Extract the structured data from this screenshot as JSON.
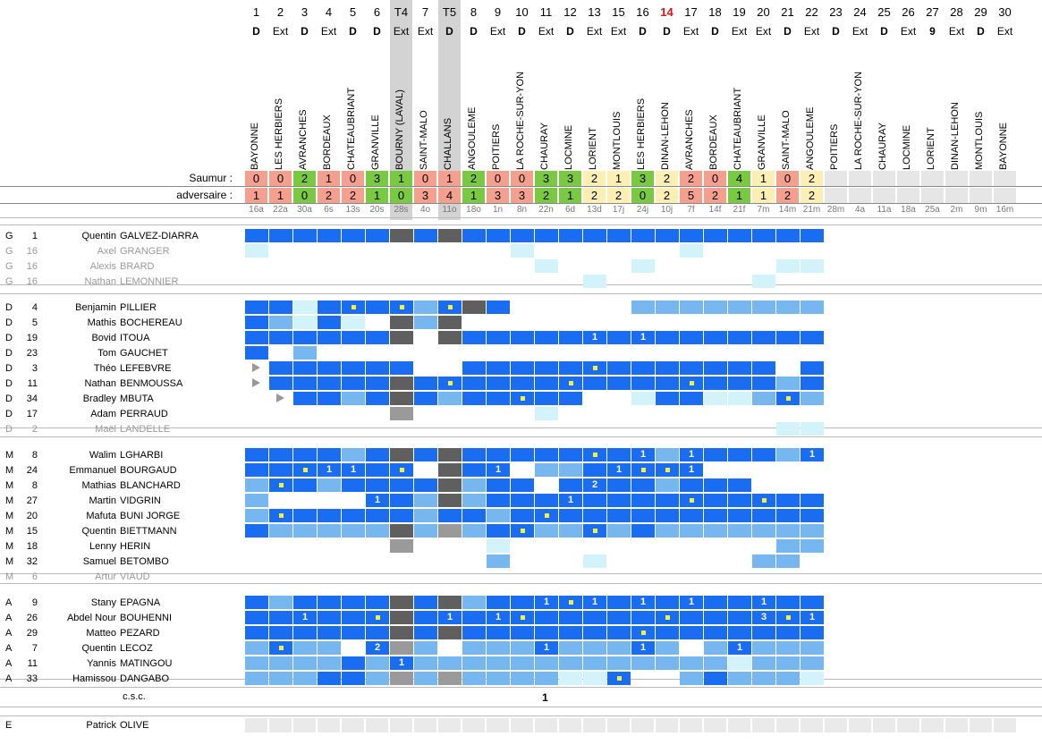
{
  "rounds": [
    "1",
    "2",
    "3",
    "4",
    "5",
    "6",
    "T4",
    "7",
    "T5",
    "8",
    "9",
    "10",
    "11",
    "12",
    "13",
    "15",
    "16",
    "14",
    "17",
    "18",
    "19",
    "20",
    "21",
    "22",
    "23",
    "24",
    "25",
    "26",
    "27",
    "28",
    "29",
    "30"
  ],
  "venues": [
    "D",
    "Ext",
    "D",
    "Ext",
    "D",
    "D",
    "Ext",
    "Ext",
    "D",
    "D",
    "Ext",
    "D",
    "Ext",
    "D",
    "Ext",
    "Ext",
    "D",
    "D",
    "Ext",
    "D",
    "Ext",
    "Ext",
    "D",
    "Ext",
    "D",
    "Ext",
    "D",
    "Ext",
    "9",
    "Ext",
    "D",
    "Ext"
  ],
  "opponents": [
    "BAYONNE",
    "LES HERBIERS",
    "AVRANCHES",
    "BORDEAUX",
    "CHATEAUBRIANT",
    "GRANVILLE",
    "BOURNY (LAVAL)",
    "SAINT-MALO",
    "CHALLANS",
    "ANGOULEME",
    "POITIERS",
    "LA ROCHE-SUR-YON",
    "CHAURAY",
    "LOCMINE",
    "LORIENT",
    "MONTLOUIS",
    "LES HERBIERS",
    "DINAN-LEHON",
    "AVRANCHES",
    "BORDEAUX",
    "CHATEAUBRIANT",
    "GRANVILLE",
    "SAINT-MALO",
    "ANGOULEME",
    "POITIERS",
    "LA ROCHE-SUR-YON",
    "CHAURAY",
    "LOCMINE",
    "LORIENT",
    "DINAN-LEHON",
    "MONTLOUIS",
    "BAYONNE"
  ],
  "score_labels": {
    "team": "Saumur :",
    "opponent": "adversaire :"
  },
  "team_scores": [
    "0",
    "0",
    "2",
    "1",
    "0",
    "3",
    "1",
    "0",
    "1",
    "2",
    "0",
    "0",
    "3",
    "3",
    "2",
    "1",
    "3",
    "2",
    "2",
    "0",
    "4",
    "1",
    "0",
    "2",
    "",
    "",
    "",
    "",
    "",
    "",
    "",
    ""
  ],
  "opp_scores": [
    "1",
    "1",
    "0",
    "2",
    "2",
    "1",
    "0",
    "3",
    "4",
    "1",
    "3",
    "3",
    "2",
    "1",
    "2",
    "2",
    "0",
    "2",
    "5",
    "2",
    "1",
    "1",
    "2",
    "2",
    "",
    "",
    "",
    "",
    "",
    "",
    "",
    ""
  ],
  "results": [
    "L",
    "L",
    "W",
    "L",
    "L",
    "W",
    "W",
    "L",
    "L",
    "W",
    "L",
    "L",
    "W",
    "W",
    "D",
    "D",
    "W",
    "D",
    "L",
    "L",
    "W",
    "D",
    "L",
    "D",
    "",
    "",
    "",
    "",
    "",
    "",
    "",
    ""
  ],
  "dates": [
    "16a",
    "22a",
    "30a",
    "6s",
    "13s",
    "20s",
    "28s",
    "4o",
    "11o",
    "18o",
    "1n",
    "8n",
    "22n",
    "6d",
    "13d",
    "17j",
    "24j",
    "10j",
    "7f",
    "14f",
    "21f",
    "7m",
    "14m",
    "21m",
    "28m",
    "4a",
    "11a",
    "18a",
    "25a",
    "2m",
    "9m",
    "16m"
  ],
  "colors": {
    "win": "#7ac943",
    "loss": "#f5a08e",
    "draw": "#fcefb4",
    "future": "#e6e6e6",
    "full": "#1a6cf0",
    "half": "#77b7f0",
    "light": "#d2f3fa",
    "dark": "#5f5f5f",
    "mid": "#9a9a9a",
    "pale": "#e4e4e4",
    "cup": "#d3d3d3",
    "goal_dot": "#f2f23a",
    "sub_arrow": "#999999",
    "red_round": "#e01010"
  },
  "players": [
    {
      "pos": "G",
      "num": "1",
      "first": "Quentin",
      "last": "GALVEZ-DIARRA",
      "grey": false,
      "cells": "FFFFFFdFdFFFFFFFFFFFFFFF"
    },
    {
      "pos": "G",
      "num": "16",
      "first": "Axel",
      "last": "GRANGER",
      "grey": true,
      "cells": "l..........l......l....."
    },
    {
      "pos": "G",
      "num": "16",
      "first": "Alexis",
      "last": "BRARD",
      "grey": true,
      "cells": "............l...l.....ll"
    },
    {
      "pos": "G",
      "num": "16",
      "first": "Nathan",
      "last": "LEMONNIER",
      "grey": true,
      "cells": "..............l......l.."
    },
    {
      "sep": true
    },
    {
      "pos": "D",
      "num": "4",
      "first": "Benjamin",
      "last": "PILLIER",
      "grey": false,
      "cells": "FFlF*F*h*dF.....hhhhhhhh"
    },
    {
      "pos": "D",
      "num": "5",
      "first": "Mathis",
      "last": "BOCHEREAU",
      "grey": false,
      "cells": "FhlFl.dhd..............."
    },
    {
      "pos": "D",
      "num": "19",
      "first": "Bovid",
      "last": "ITOUA",
      "grey": false,
      "cells": "FFFFFFd.dFFFFF1F1FFFFFFF"
    },
    {
      "pos": "D",
      "num": "23",
      "first": "Tom",
      "last": "GAUCHET",
      "grey": false,
      "cells": "F.h....................."
    },
    {
      "pos": "D",
      "num": "3",
      "first": "Théo",
      "last": "LEFEBVRE",
      "grey": false,
      "cells": ">FFFFFF..FFFFF*FFFFFFF.F"
    },
    {
      "pos": "D",
      "num": "11",
      "first": "Nathan",
      "last": "BENMOUSSA",
      "grey": false,
      "cells": ">FFFFFdF*FFFF*FFFF*FFFhF"
    },
    {
      "pos": "D",
      "num": "34",
      "first": "Bradley",
      "last": "MBUTA",
      "grey": false,
      "cells": ".>FFhFdFhFF*FF..lFFllh*hF"
    },
    {
      "pos": "D",
      "num": "17",
      "first": "Adam",
      "last": "PERRAUD",
      "grey": false,
      "cells": "......m.....l..........."
    },
    {
      "pos": "D",
      "num": "2",
      "first": "Maël",
      "last": "LANDELLE",
      "grey": true,
      "cells": "......................ll"
    },
    {
      "sep": true
    },
    {
      "pos": "M",
      "num": "8",
      "first": "Walim",
      "last": "LGHARBI",
      "grey": false,
      "cells": "FFFFhFdFdFFFFF*F1h1FFFh1"
    },
    {
      "pos": "M",
      "num": "24",
      "first": "Emmanuel",
      "last": "BOURGAUD",
      "grey": false,
      "cells": "FF*11F*.dF1.hhF1**1....."
    },
    {
      "pos": "M",
      "num": "8",
      "first": "Mathias",
      "last": "BLANCHARD",
      "grey": false,
      "cells": "h*FhFFFFdhFF.F2FFhFFF..."
    },
    {
      "pos": "M",
      "num": "27",
      "first": "Martin",
      "last": "VIDGRIN",
      "grey": false,
      "cells": "h....1FhdhFFF1FFFF*FF*FF"
    },
    {
      "pos": "M",
      "num": "20",
      "first": "Mafuta",
      "last": "BUNI JORGE",
      "grey": false,
      "cells": "h*FFFFFhFFhF*FFFFFFFFFFF"
    },
    {
      "pos": "M",
      "num": "15",
      "first": "Quentin",
      "last": "BIETTMANN",
      "grey": false,
      "cells": "FhhhhhdhmhF*hh*hFhhhhhhh"
    },
    {
      "pos": "M",
      "num": "18",
      "first": "Lenny",
      "last": "HERIN",
      "grey": false,
      "cells": "......m...l...........hh"
    },
    {
      "pos": "M",
      "num": "32",
      "first": "Samuel",
      "last": "BETOMBO",
      "grey": false,
      "cells": "..........h...l......hh."
    },
    {
      "pos": "M",
      "num": "6",
      "first": "Artur",
      "last": "VIAUD",
      "grey": true,
      "cells": "........................"
    },
    {
      "sep": true
    },
    {
      "pos": "A",
      "num": "9",
      "first": "Stany",
      "last": "EPAGNA",
      "grey": false,
      "cells": "FhFFFFdFdhFF1*1F1F1FF1FF"
    },
    {
      "pos": "A",
      "num": "26",
      "first": "Abdel Nour",
      "last": "BOUHENNI",
      "grey": false,
      "cells": "FF1FF*dF1F1*FFFFF*FFF3*1"
    },
    {
      "pos": "A",
      "num": "29",
      "first": "Matteo",
      "last": "PEZARD",
      "grey": false,
      "cells": "FFFFFFdFdFFFFFFF*FFFFFFF"
    },
    {
      "pos": "A",
      "num": "7",
      "first": "Quentin",
      "last": "LECOZ",
      "grey": false,
      "cells": "h*hh.2mh.hhh1hhh1h.h1hhh"
    },
    {
      "pos": "A",
      "num": "11",
      "first": "Yannis",
      "last": "MATINGOU",
      "grey": false,
      "cells": "hhhhFh1hhhhhhhhhhhhhlhhh"
    },
    {
      "pos": "A",
      "num": "33",
      "first": "Hamissou",
      "last": "DANGABO",
      "grey": false,
      "cells": "hhhFFhmhmhhhhll*..hFhhhl"
    }
  ],
  "csc": {
    "label": "c.s.c.",
    "value": "1"
  },
  "coach": {
    "pos": "E",
    "first": "Patrick",
    "last": "OLIVE"
  }
}
